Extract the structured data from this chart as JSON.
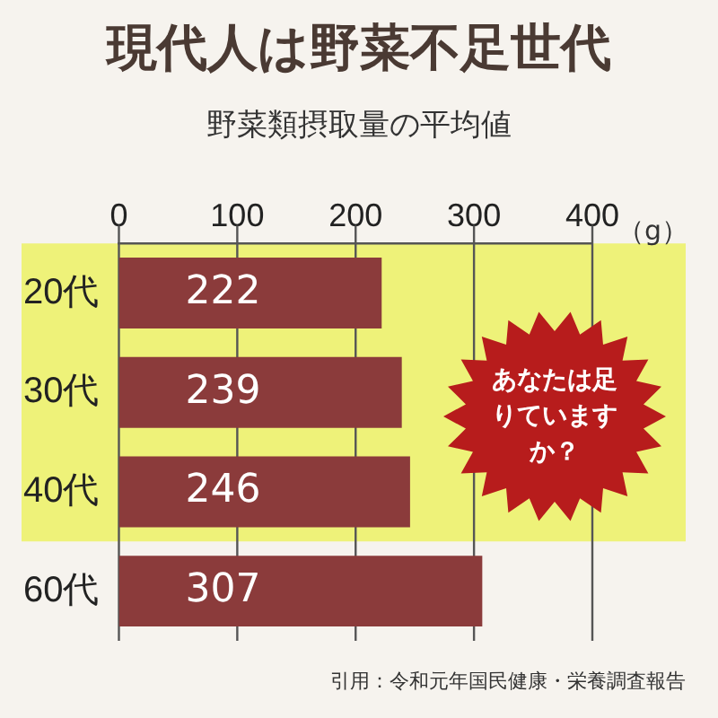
{
  "chart_data": {
    "type": "bar",
    "orientation": "horizontal",
    "title": "現代人は野菜不足世代",
    "subtitle": "野菜類摂取量の平均値",
    "xlabel": "（g）",
    "categories": [
      "20代",
      "30代",
      "40代",
      "60代"
    ],
    "values": [
      222,
      239,
      246,
      307
    ],
    "color": "#8b3b3b",
    "xlim": [
      0,
      400
    ],
    "xticks": [
      0,
      100,
      200,
      300,
      400
    ],
    "grid": "x",
    "legend": false,
    "data_labels": true,
    "bands": [
      {
        "axis": "y",
        "from": "20代",
        "to": "40代",
        "color": "#eef279"
      }
    ],
    "annotations": [
      "あなたは足りていますか？",
      "引用：令和元年国民健康・栄養調査報告"
    ]
  }
}
